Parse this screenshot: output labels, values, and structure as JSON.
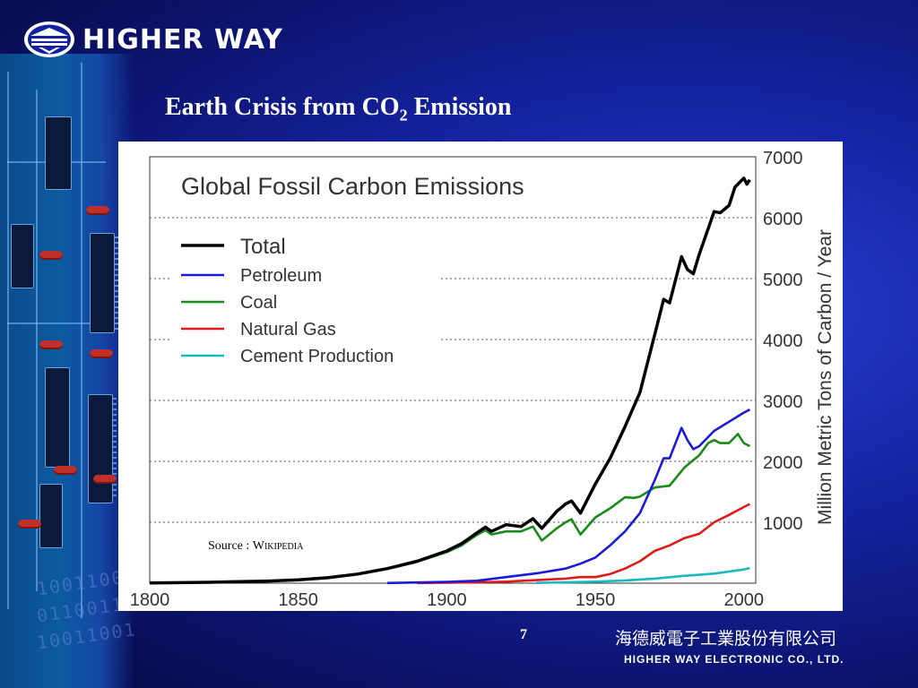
{
  "brand": {
    "name": "HIGHER WAY",
    "logo_icon": "higher-way-logo-icon"
  },
  "slide": {
    "title_main": "Earth Crisis from CO",
    "title_sub": "2",
    "title_tail": " Emission",
    "source_label": "Source : ",
    "source_name": "Wikipedia",
    "page_number": "7"
  },
  "footer": {
    "company_cn": "海德威電子工業股份有限公司",
    "company_en": "HIGHER WAY ELECTRONIC CO., LTD."
  },
  "colors": {
    "background": "#1726a8",
    "total": "#000000",
    "petroleum": "#1a1ad8",
    "coal": "#1a8a1a",
    "natural_gas": "#e01a1a",
    "cement": "#1ab8c0"
  },
  "chart_data": {
    "type": "line",
    "title": "Global Fossil Carbon Emissions",
    "ylabel": "Million Metric Tons of Carbon / Year",
    "xlabel": "",
    "xlim": [
      1800,
      2004
    ],
    "ylim": [
      0,
      7000
    ],
    "x_ticks": [
      1800,
      1850,
      1900,
      1950,
      2000
    ],
    "y_ticks": [
      1000,
      2000,
      3000,
      4000,
      5000,
      6000,
      7000
    ],
    "y_axis_side": "right",
    "grid": "horizontal-dotted",
    "legend_position": "top-left",
    "series": [
      {
        "name": "Total",
        "color": "#000000",
        "points": [
          [
            1800,
            5
          ],
          [
            1820,
            15
          ],
          [
            1840,
            35
          ],
          [
            1850,
            55
          ],
          [
            1860,
            90
          ],
          [
            1870,
            150
          ],
          [
            1880,
            240
          ],
          [
            1890,
            360
          ],
          [
            1900,
            530
          ],
          [
            1905,
            650
          ],
          [
            1910,
            820
          ],
          [
            1913,
            920
          ],
          [
            1915,
            850
          ],
          [
            1920,
            960
          ],
          [
            1925,
            930
          ],
          [
            1929,
            1060
          ],
          [
            1932,
            900
          ],
          [
            1937,
            1180
          ],
          [
            1940,
            1300
          ],
          [
            1942,
            1350
          ],
          [
            1945,
            1150
          ],
          [
            1950,
            1630
          ],
          [
            1955,
            2050
          ],
          [
            1960,
            2570
          ],
          [
            1965,
            3130
          ],
          [
            1970,
            4080
          ],
          [
            1973,
            4660
          ],
          [
            1975,
            4600
          ],
          [
            1979,
            5360
          ],
          [
            1981,
            5150
          ],
          [
            1983,
            5080
          ],
          [
            1985,
            5400
          ],
          [
            1990,
            6100
          ],
          [
            1992,
            6080
          ],
          [
            1995,
            6200
          ],
          [
            1997,
            6500
          ],
          [
            1999,
            6600
          ],
          [
            2000,
            6650
          ],
          [
            2001,
            6550
          ],
          [
            2002,
            6620
          ]
        ]
      },
      {
        "name": "Petroleum",
        "color": "#1a1ad8",
        "points": [
          [
            1880,
            3
          ],
          [
            1900,
            20
          ],
          [
            1910,
            40
          ],
          [
            1920,
            100
          ],
          [
            1930,
            160
          ],
          [
            1940,
            240
          ],
          [
            1945,
            320
          ],
          [
            1950,
            420
          ],
          [
            1955,
            620
          ],
          [
            1960,
            850
          ],
          [
            1965,
            1150
          ],
          [
            1970,
            1690
          ],
          [
            1973,
            2050
          ],
          [
            1975,
            2050
          ],
          [
            1979,
            2550
          ],
          [
            1981,
            2350
          ],
          [
            1983,
            2200
          ],
          [
            1985,
            2250
          ],
          [
            1990,
            2500
          ],
          [
            1995,
            2650
          ],
          [
            2000,
            2800
          ],
          [
            2002,
            2850
          ]
        ]
      },
      {
        "name": "Coal",
        "color": "#1a8a1a",
        "points": [
          [
            1800,
            5
          ],
          [
            1820,
            15
          ],
          [
            1840,
            35
          ],
          [
            1850,
            55
          ],
          [
            1860,
            90
          ],
          [
            1870,
            150
          ],
          [
            1880,
            235
          ],
          [
            1890,
            350
          ],
          [
            1900,
            510
          ],
          [
            1905,
            620
          ],
          [
            1910,
            790
          ],
          [
            1913,
            870
          ],
          [
            1915,
            800
          ],
          [
            1920,
            850
          ],
          [
            1925,
            850
          ],
          [
            1929,
            930
          ],
          [
            1932,
            700
          ],
          [
            1937,
            900
          ],
          [
            1940,
            1000
          ],
          [
            1942,
            1050
          ],
          [
            1945,
            800
          ],
          [
            1950,
            1080
          ],
          [
            1955,
            1230
          ],
          [
            1960,
            1410
          ],
          [
            1963,
            1400
          ],
          [
            1965,
            1420
          ],
          [
            1970,
            1570
          ],
          [
            1975,
            1600
          ],
          [
            1980,
            1900
          ],
          [
            1985,
            2100
          ],
          [
            1988,
            2300
          ],
          [
            1990,
            2350
          ],
          [
            1992,
            2300
          ],
          [
            1995,
            2300
          ],
          [
            1998,
            2450
          ],
          [
            2000,
            2300
          ],
          [
            2002,
            2250
          ]
        ]
      },
      {
        "name": "Natural Gas",
        "color": "#e01a1a",
        "points": [
          [
            1890,
            3
          ],
          [
            1900,
            8
          ],
          [
            1910,
            15
          ],
          [
            1920,
            25
          ],
          [
            1930,
            50
          ],
          [
            1940,
            75
          ],
          [
            1945,
            100
          ],
          [
            1950,
            100
          ],
          [
            1955,
            150
          ],
          [
            1960,
            240
          ],
          [
            1965,
            360
          ],
          [
            1970,
            530
          ],
          [
            1975,
            620
          ],
          [
            1980,
            740
          ],
          [
            1985,
            810
          ],
          [
            1990,
            1000
          ],
          [
            1995,
            1120
          ],
          [
            2000,
            1250
          ],
          [
            2002,
            1300
          ]
        ]
      },
      {
        "name": "Cement Production",
        "color": "#1ab8c0",
        "points": [
          [
            1930,
            5
          ],
          [
            1940,
            15
          ],
          [
            1950,
            25
          ],
          [
            1960,
            45
          ],
          [
            1970,
            75
          ],
          [
            1980,
            120
          ],
          [
            1990,
            157
          ],
          [
            2000,
            225
          ],
          [
            2002,
            250
          ]
        ]
      }
    ]
  }
}
